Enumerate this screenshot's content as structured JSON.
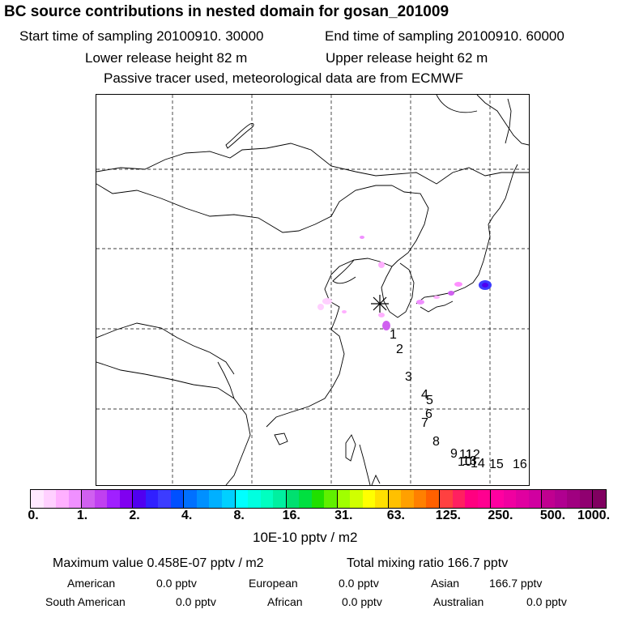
{
  "title": "BC  source contributions in nested domain for gosan_201009",
  "header": {
    "start_label": "Start time of sampling 20100910. 30000",
    "end_label": "End time of sampling 20100910. 60000",
    "lower_label": "Lower release height   82 m",
    "upper_label": "Upper release height   62 m",
    "tracer_note": "Passive tracer used, meteorological data are from ECMWF"
  },
  "map": {
    "trajectory_labels": [
      "1",
      "2",
      "3",
      "4",
      "5",
      "6",
      "7",
      "8",
      "9",
      "10",
      "11",
      "12",
      "13",
      "14",
      "15",
      "16"
    ],
    "receptor_marker": "asterisk-icon"
  },
  "colorbar": {
    "tick_labels": [
      "0.",
      "1.",
      "2.",
      "4.",
      "8.",
      "16.",
      "31.",
      "63.",
      "125.",
      "250.",
      "500.",
      "1000."
    ],
    "unit_label": "10E-10 pptv / m2",
    "colors": [
      "#ffe8ff",
      "#ffd0ff",
      "#ffb0ff",
      "#f090ff",
      "#d060f0",
      "#c040f0",
      "#a020ff",
      "#8000f0",
      "#5000f0",
      "#3020ff",
      "#3c3cff",
      "#0050ff",
      "#0070ff",
      "#0090ff",
      "#00b0ff",
      "#00d0ff",
      "#00ffff",
      "#00ffe0",
      "#00ffc0",
      "#00f0a0",
      "#00e070",
      "#00e040",
      "#20e000",
      "#60f000",
      "#a0ff00",
      "#d0ff00",
      "#ffff00",
      "#ffe000",
      "#ffc000",
      "#ffa000",
      "#ff8000",
      "#ff6000",
      "#ff4040",
      "#ff2060",
      "#ff0080",
      "#ff0090",
      "#ff00a0",
      "#f000a0",
      "#e000a0",
      "#d000a0",
      "#c00090",
      "#b00090",
      "#a00080",
      "#900070",
      "#800060"
    ]
  },
  "footer": {
    "max_value": "Maximum value  0.458E-07 pptv / m2",
    "total_mixing": "Total mixing ratio      166.7 pptv",
    "american_label": "American",
    "american_value": "0.0 pptv",
    "european_label": "European",
    "european_value": "0.0 pptv",
    "asian_label": "Asian",
    "asian_value": "166.7 pptv",
    "south_american_label": "South American",
    "south_american_value": "0.0 pptv",
    "african_label": "African",
    "african_value": "0.0 pptv",
    "australian_label": "Australian",
    "australian_value": "0.0 pptv"
  }
}
